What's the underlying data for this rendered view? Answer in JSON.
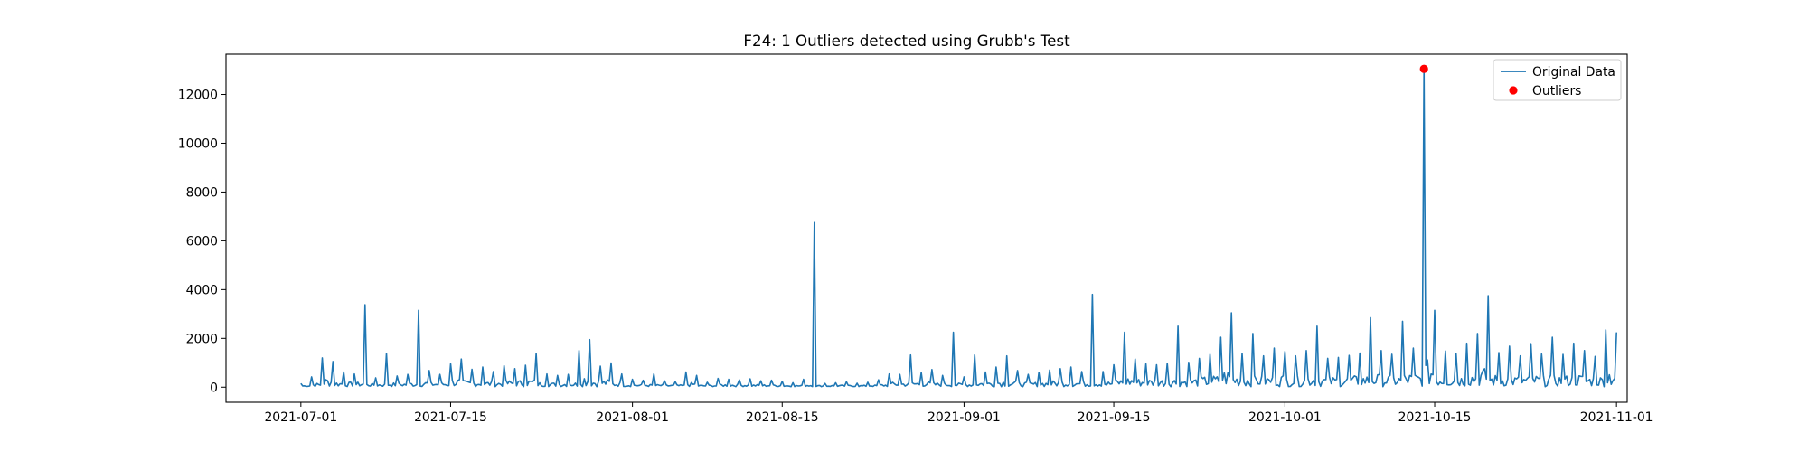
{
  "chart_data": {
    "type": "line",
    "title": "F24: 1 Outliers detected using Grubb's Test",
    "xlabel": "",
    "ylabel": "",
    "x_range": [
      "2021-07-01",
      "2021-11-01"
    ],
    "xlim": [
      "2021-06-24",
      "2021-11-02"
    ],
    "ylim": [
      -620,
      13650
    ],
    "x_ticks": [
      "2021-07-01",
      "2021-07-15",
      "2021-08-01",
      "2021-08-15",
      "2021-09-01",
      "2021-09-15",
      "2021-10-01",
      "2021-10-15",
      "2021-11-01"
    ],
    "y_ticks": [
      0,
      2000,
      4000,
      6000,
      8000,
      10000,
      12000
    ],
    "grid": false,
    "legend": {
      "placement": "top-right",
      "entries": [
        "Original Data",
        "Outliers"
      ]
    },
    "colors": {
      "line": "#1f77b4",
      "outlier": "#ff0000",
      "axis": "#000000"
    },
    "series": [
      {
        "name": "Original Data",
        "style": "line",
        "points": [
          [
            "2021-07-01",
            150
          ],
          [
            "2021-07-02",
            420
          ],
          [
            "2021-07-03",
            1200
          ],
          [
            "2021-07-04",
            1050
          ],
          [
            "2021-07-05",
            620
          ],
          [
            "2021-07-06",
            540
          ],
          [
            "2021-07-07",
            3380
          ],
          [
            "2021-07-08",
            380
          ],
          [
            "2021-07-09",
            1380
          ],
          [
            "2021-07-10",
            460
          ],
          [
            "2021-07-11",
            520
          ],
          [
            "2021-07-12",
            3150
          ],
          [
            "2021-07-13",
            680
          ],
          [
            "2021-07-14",
            520
          ],
          [
            "2021-07-15",
            960
          ],
          [
            "2021-07-16",
            1150
          ],
          [
            "2021-07-17",
            730
          ],
          [
            "2021-07-18",
            820
          ],
          [
            "2021-07-19",
            640
          ],
          [
            "2021-07-20",
            880
          ],
          [
            "2021-07-21",
            760
          ],
          [
            "2021-07-22",
            900
          ],
          [
            "2021-07-23",
            1380
          ],
          [
            "2021-07-24",
            540
          ],
          [
            "2021-07-25",
            480
          ],
          [
            "2021-07-26",
            520
          ],
          [
            "2021-07-27",
            1500
          ],
          [
            "2021-07-28",
            1950
          ],
          [
            "2021-07-29",
            860
          ],
          [
            "2021-07-30",
            990
          ],
          [
            "2021-07-31",
            540
          ],
          [
            "2021-08-01",
            320
          ],
          [
            "2021-08-02",
            280
          ],
          [
            "2021-08-03",
            540
          ],
          [
            "2021-08-04",
            260
          ],
          [
            "2021-08-05",
            220
          ],
          [
            "2021-08-06",
            620
          ],
          [
            "2021-08-07",
            480
          ],
          [
            "2021-08-08",
            200
          ],
          [
            "2021-08-09",
            360
          ],
          [
            "2021-08-10",
            320
          ],
          [
            "2021-08-11",
            300
          ],
          [
            "2021-08-12",
            340
          ],
          [
            "2021-08-13",
            260
          ],
          [
            "2021-08-14",
            280
          ],
          [
            "2021-08-15",
            240
          ],
          [
            "2021-08-16",
            180
          ],
          [
            "2021-08-17",
            320
          ],
          [
            "2021-08-18",
            6750
          ],
          [
            "2021-08-19",
            150
          ],
          [
            "2021-08-20",
            180
          ],
          [
            "2021-08-21",
            220
          ],
          [
            "2021-08-22",
            160
          ],
          [
            "2021-08-23",
            200
          ],
          [
            "2021-08-24",
            300
          ],
          [
            "2021-08-25",
            540
          ],
          [
            "2021-08-26",
            520
          ],
          [
            "2021-08-27",
            1320
          ],
          [
            "2021-08-28",
            600
          ],
          [
            "2021-08-29",
            720
          ],
          [
            "2021-08-30",
            480
          ],
          [
            "2021-08-31",
            2250
          ],
          [
            "2021-09-01",
            420
          ],
          [
            "2021-09-02",
            1320
          ],
          [
            "2021-09-03",
            620
          ],
          [
            "2021-09-04",
            820
          ],
          [
            "2021-09-05",
            1280
          ],
          [
            "2021-09-06",
            680
          ],
          [
            "2021-09-07",
            520
          ],
          [
            "2021-09-08",
            600
          ],
          [
            "2021-09-09",
            700
          ],
          [
            "2021-09-10",
            760
          ],
          [
            "2021-09-11",
            820
          ],
          [
            "2021-09-12",
            640
          ],
          [
            "2021-09-13",
            3800
          ],
          [
            "2021-09-14",
            640
          ],
          [
            "2021-09-15",
            920
          ],
          [
            "2021-09-16",
            2250
          ],
          [
            "2021-09-17",
            1150
          ],
          [
            "2021-09-18",
            960
          ],
          [
            "2021-09-19",
            920
          ],
          [
            "2021-09-20",
            980
          ],
          [
            "2021-09-21",
            2500
          ],
          [
            "2021-09-22",
            1020
          ],
          [
            "2021-09-23",
            1180
          ],
          [
            "2021-09-24",
            1340
          ],
          [
            "2021-09-25",
            2050
          ],
          [
            "2021-09-26",
            3050
          ],
          [
            "2021-09-27",
            1380
          ],
          [
            "2021-09-28",
            2200
          ],
          [
            "2021-09-29",
            1280
          ],
          [
            "2021-09-30",
            1600
          ],
          [
            "2021-10-01",
            1460
          ],
          [
            "2021-10-02",
            1280
          ],
          [
            "2021-10-03",
            1500
          ],
          [
            "2021-10-04",
            2500
          ],
          [
            "2021-10-05",
            1180
          ],
          [
            "2021-10-06",
            1220
          ],
          [
            "2021-10-07",
            1300
          ],
          [
            "2021-10-08",
            1400
          ],
          [
            "2021-10-09",
            2850
          ],
          [
            "2021-10-10",
            1500
          ],
          [
            "2021-10-11",
            1350
          ],
          [
            "2021-10-12",
            2700
          ],
          [
            "2021-10-13",
            1600
          ],
          [
            "2021-10-14",
            13050
          ],
          [
            "2021-10-15",
            3150
          ],
          [
            "2021-10-16",
            1480
          ],
          [
            "2021-10-17",
            1380
          ],
          [
            "2021-10-18",
            1800
          ],
          [
            "2021-10-19",
            2200
          ],
          [
            "2021-10-20",
            3750
          ],
          [
            "2021-10-21",
            1420
          ],
          [
            "2021-10-22",
            1680
          ],
          [
            "2021-10-23",
            1280
          ],
          [
            "2021-10-24",
            1780
          ],
          [
            "2021-10-25",
            1360
          ],
          [
            "2021-10-26",
            2050
          ],
          [
            "2021-10-27",
            1340
          ],
          [
            "2021-10-28",
            1800
          ],
          [
            "2021-10-29",
            1500
          ],
          [
            "2021-10-30",
            1260
          ],
          [
            "2021-10-31",
            2350
          ],
          [
            "2021-11-01",
            2250
          ]
        ]
      },
      {
        "name": "Outliers",
        "style": "scatter",
        "points": [
          [
            "2021-10-14",
            13050
          ]
        ]
      }
    ]
  }
}
